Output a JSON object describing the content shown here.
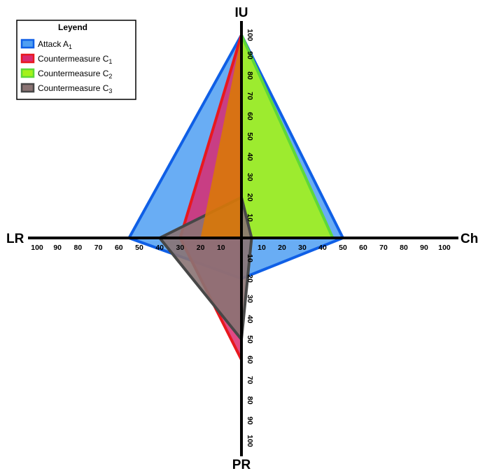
{
  "chart_data": {
    "type": "radar",
    "axes": [
      {
        "key": "IU",
        "label": "IU",
        "direction": "up",
        "ticks": [
          "10",
          "20",
          "30",
          "40",
          "50",
          "60",
          "70",
          "80",
          "90",
          "100"
        ]
      },
      {
        "key": "Ch",
        "label": "Ch",
        "direction": "right",
        "ticks": [
          "10",
          "20",
          "30",
          "40",
          "50",
          "60",
          "70",
          "80",
          "90",
          "100"
        ]
      },
      {
        "key": "PR",
        "label": "PR",
        "direction": "down",
        "ticks": [
          "10",
          "20",
          "30",
          "40",
          "50",
          "60",
          "70",
          "80",
          "90",
          "100"
        ]
      },
      {
        "key": "LR",
        "label": "LR",
        "direction": "left",
        "ticks": [
          "10",
          "20",
          "30",
          "40",
          "50",
          "60",
          "70",
          "80",
          "90",
          "100"
        ]
      }
    ],
    "range": [
      0,
      100
    ],
    "legend": {
      "title": "Leyend",
      "placement": "top-left",
      "entries": [
        {
          "base": "Attack A",
          "sub": "1"
        },
        {
          "base": "Countermeasure C",
          "sub": "1"
        },
        {
          "base": "Countermeasure C",
          "sub": "2"
        },
        {
          "base": "Countermeasure C",
          "sub": "3"
        }
      ]
    },
    "series": [
      {
        "legend_index": 0,
        "fill": "#4f9ff2",
        "stroke": "#0f5fe6",
        "opacity": 0.85,
        "values": {
          "IU": 100,
          "Ch": 50,
          "PR": 20,
          "LR": 55
        }
      },
      {
        "legend_index": 1,
        "fill": "#d92a70",
        "stroke": "#e8181e",
        "opacity": 0.85,
        "values": {
          "IU": 100,
          "Ch": 0,
          "PR": 60,
          "LR": 30
        }
      },
      {
        "legend_index": 2,
        "fill": "#a3f21a",
        "stroke": "#5ed838",
        "opacity": 0.9,
        "values": {
          "IU": 100,
          "Ch": 45,
          "PR": 0,
          "LR": 0
        }
      },
      {
        "legend_index": 3,
        "fill": "#8a7373",
        "stroke": "#474747",
        "opacity": 0.9,
        "values": {
          "IU": 20,
          "Ch": 5,
          "PR": 50,
          "LR": 40
        }
      }
    ],
    "overlap_region": {
      "fill": "#d97808",
      "values": {
        "IU": 100,
        "Ch": 0,
        "PR": 0,
        "LR": 20
      }
    }
  }
}
